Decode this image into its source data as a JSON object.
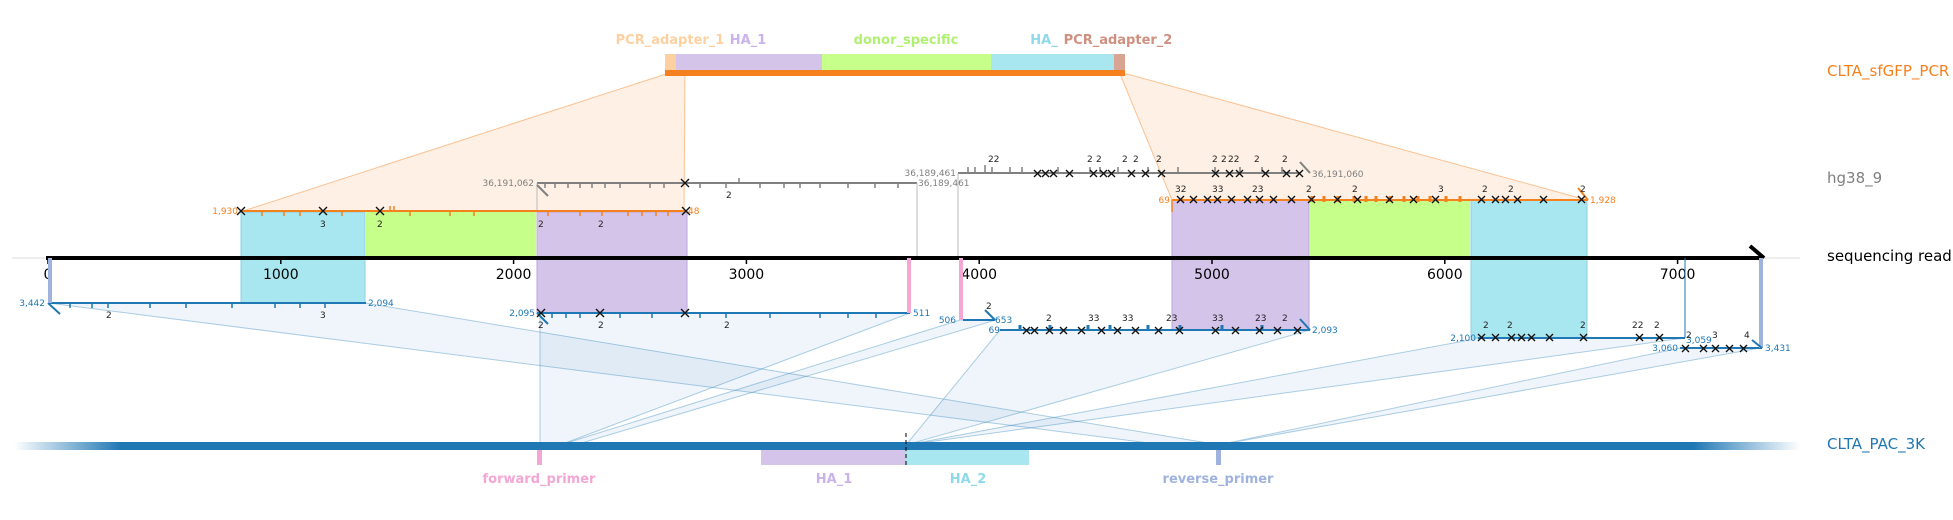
{
  "colors": {
    "pcr": "#f5801e",
    "hg38": "#808080",
    "read": "#000000",
    "pac": "#1f77b4",
    "adapter1": "#fdd0a2",
    "adapter2": "#d8a595",
    "ha1": "#d4c4ea",
    "donor": "#c6ff8a",
    "ha2": "#a8e6f0",
    "fwd_primer": "#f4a6d4",
    "rev_primer": "#9fb3de"
  },
  "targets": {
    "pcr": "CLTA_sfGFP_PCR",
    "hg38": "hg38_9",
    "read": "sequencing read",
    "pac": "CLTA_PAC_3K"
  },
  "pcr_features": {
    "adapter1": "PCR_adapter_1",
    "ha1": "HA_1",
    "donor": "donor_specific",
    "ha2": "HA_",
    "adapter2": "PCR_adapter_2"
  },
  "pac_features": {
    "forward_primer": "forward_primer",
    "ha1": "HA_1",
    "ha2": "HA_2",
    "reverse_primer": "reverse_primer"
  },
  "read_axis": {
    "ticks": [
      0,
      1000,
      2000,
      3000,
      4000,
      5000,
      6000,
      7000
    ],
    "tick_labels": [
      "0",
      "1000",
      "2000",
      "3000",
      "4000",
      "5000",
      "6000",
      "7000"
    ],
    "length": 7400
  },
  "alignment_labels": {
    "pcr_left_start": "1,930",
    "pcr_left_end": "48",
    "pcr_right_start": "69",
    "pcr_right_end": "1,928",
    "hg38_left_start": "36,191,062",
    "hg38_left_end": "36,189,461",
    "hg38_right_start": "36,189,461",
    "hg38_right_end": "36,191,060",
    "pac_a_start": "3,442",
    "pac_a_end": "2,094",
    "pac_b_start": "2,095",
    "pac_b_end": "511",
    "pac_c_start": "506",
    "pac_c_end": "653",
    "pac_d_start": "69",
    "pac_d_end": "2,093",
    "pac_e_start": "2,100",
    "pac_f_start": "3,060",
    "pac_f_mid": "3,059",
    "pac_f_end": "3,431"
  },
  "mismatch_counts": {
    "two": "2",
    "three": "3",
    "four": "4",
    "twentytwo": "22",
    "twentythree": "23",
    "thirtytwo": "32",
    "threetwo": "33"
  }
}
